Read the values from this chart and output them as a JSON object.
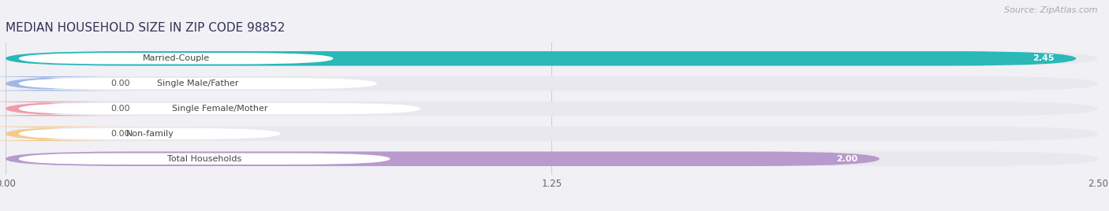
{
  "title": "MEDIAN HOUSEHOLD SIZE IN ZIP CODE 98852",
  "source": "Source: ZipAtlas.com",
  "categories": [
    "Married-Couple",
    "Single Male/Father",
    "Single Female/Mother",
    "Non-family",
    "Total Households"
  ],
  "values": [
    2.45,
    0.0,
    0.0,
    0.0,
    2.0
  ],
  "bar_colors": [
    "#2ab8b8",
    "#a0b8e8",
    "#f09aaa",
    "#f5c98a",
    "#b89acc"
  ],
  "label_bg_color": "#ffffff",
  "bar_bg_color": "#e8e8ee",
  "xlim": [
    0,
    2.5
  ],
  "xticks": [
    0.0,
    1.25,
    2.5
  ],
  "xtick_labels": [
    "0.00",
    "1.25",
    "2.50"
  ],
  "figsize": [
    14.06,
    2.68
  ],
  "dpi": 100,
  "title_fontsize": 11,
  "source_fontsize": 8,
  "bar_label_fontsize": 8,
  "tick_fontsize": 8.5,
  "category_fontsize": 8,
  "background_color": "#f0f0f5",
  "bar_height": 0.58,
  "title_color": "#333355",
  "source_color": "#aaaaaa",
  "value_color_inside": "#ffffff",
  "value_color_outside": "#555555",
  "label_widths": {
    "Married-Couple": 0.72,
    "Single Male/Father": 0.82,
    "Single Female/Mother": 0.92,
    "Non-family": 0.6,
    "Total Households": 0.85
  }
}
